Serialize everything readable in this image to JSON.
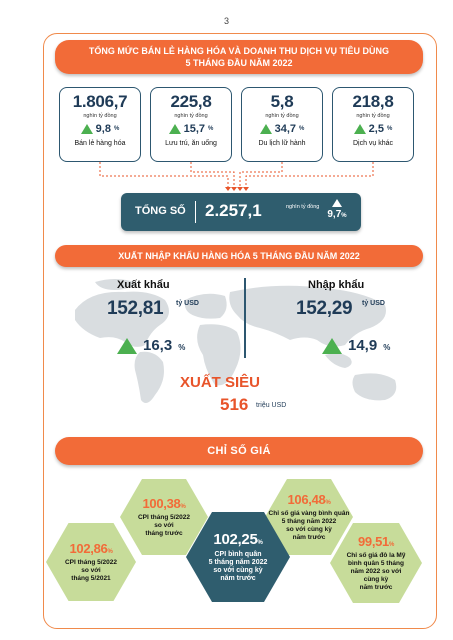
{
  "page_number": "3",
  "retail": {
    "title_line1": "TỔNG MỨC BÁN LẺ HÀNG HÓA VÀ DOANH THU DỊCH VỤ TIÊU DÙNG",
    "title_line2": "5 THÁNG ĐẦU NĂM 2022",
    "cards": [
      {
        "value": "1.806,7",
        "unit": "nghìn tỷ đồng",
        "growth": "9,8",
        "pct": "%",
        "label": "Bán lẻ hàng hóa"
      },
      {
        "value": "225,8",
        "unit": "nghìn tỷ đồng",
        "growth": "15,7",
        "pct": "%",
        "label": "Lưu trú, ăn uống"
      },
      {
        "value": "5,8",
        "unit": "nghìn tỷ đồng",
        "growth": "34,7",
        "pct": "%",
        "label": "Du lịch lữ hành"
      },
      {
        "value": "218,8",
        "unit": "nghìn tỷ đồng",
        "growth": "2,5",
        "pct": "%",
        "label": "Dịch vụ khác"
      }
    ],
    "total": {
      "label": "TỔNG SỐ",
      "value": "2.257,1",
      "unit": "nghìn tỷ đồng",
      "growth": "9,7",
      "pct": "%"
    }
  },
  "trade": {
    "title": "XUẤT NHẬP KHẨU HÀNG HÓA 5 THÁNG ĐẦU NĂM 2022",
    "export": {
      "label": "Xuất khẩu",
      "value": "152,81",
      "unit": "tỷ USD",
      "growth": "16,3",
      "pct": "%"
    },
    "import": {
      "label": "Nhập khẩu",
      "value": "152,29",
      "unit": "tỷ USD",
      "growth": "14,9",
      "pct": "%"
    },
    "surplus": {
      "label": "XUẤT SIÊU",
      "value": "516",
      "unit": "triệu USD"
    }
  },
  "prices": {
    "title": "CHỈ SỐ GIÁ",
    "items": [
      {
        "value": "100,38",
        "pct": "%",
        "desc": [
          "CPI tháng 5/2022",
          "so với",
          "tháng trước"
        ]
      },
      {
        "value": "106,48",
        "pct": "%",
        "desc": [
          "Chỉ số giá vàng bình quân",
          "5 tháng năm 2022",
          "so với cùng kỳ",
          "năm trước"
        ]
      },
      {
        "value": "102,86",
        "pct": "%",
        "desc": [
          "CPI tháng 5/2022",
          "so với",
          "tháng 5/2021"
        ]
      },
      {
        "value": "102,25",
        "pct": "%",
        "desc": [
          "CPI bình quân",
          "5 tháng năm 2022",
          "so với cùng kỳ",
          "năm trước"
        ]
      },
      {
        "value": "99,51",
        "pct": "%",
        "desc": [
          "Chỉ số giá đô la Mỹ",
          "bình quân 5 tháng",
          "năm 2022 so với",
          "cùng kỳ",
          "năm trước"
        ]
      }
    ]
  },
  "colors": {
    "accent": "#f26b38",
    "navy": "#2f5d6e",
    "green": "#4cb050",
    "hex_green": "#c7dc9a",
    "surplus": "#e8542a"
  }
}
